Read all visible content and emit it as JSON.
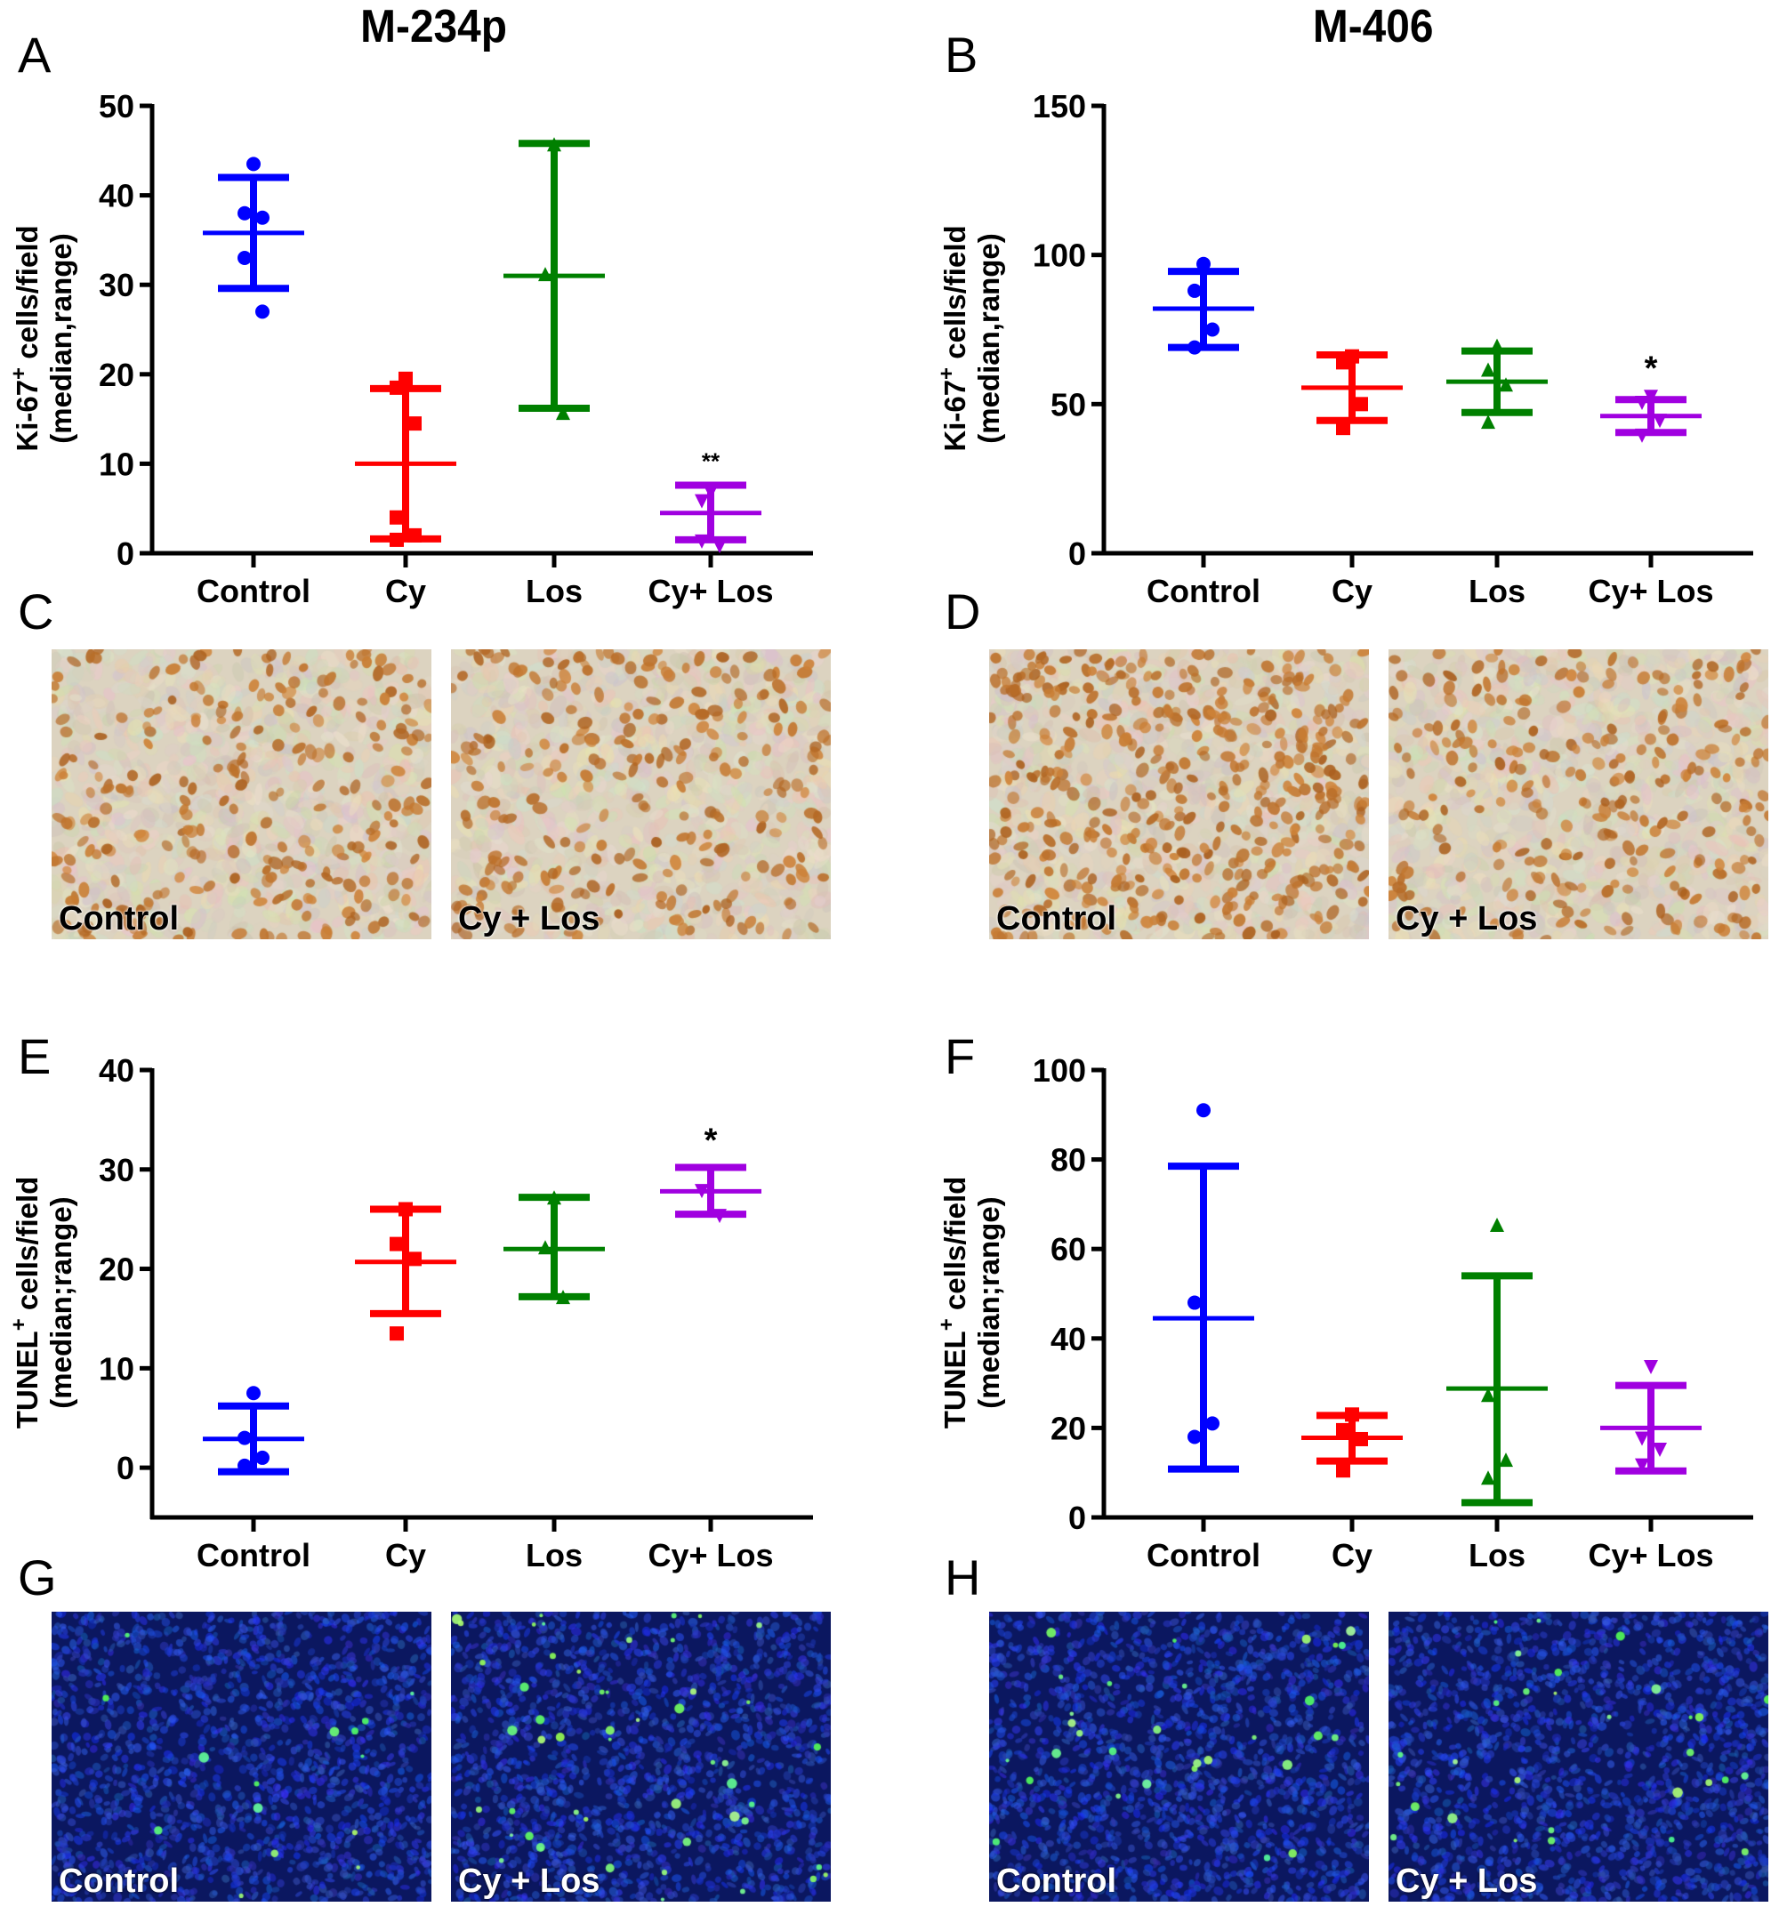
{
  "titles": {
    "left": "M-234p",
    "right": "M-406"
  },
  "panel_letters": [
    "A",
    "B",
    "C",
    "D",
    "E",
    "F",
    "G",
    "H"
  ],
  "colors": {
    "Control": "#0000ff",
    "Cy": "#ff0000",
    "Los": "#008000",
    "Cy+ Los": "#a000e0"
  },
  "markers": {
    "Control": "circle",
    "Cy": "square",
    "Los": "triangle-up",
    "Cy+ Los": "triangle-down"
  },
  "chart_data": [
    {
      "id": "A",
      "type": "scatter",
      "title": "M-234p",
      "ylabel": {
        "main": "Ki-67",
        "sup": "+",
        "rest": " cells/field",
        "line2": "(median,range)"
      },
      "ylim": [
        0,
        50
      ],
      "yticks": [
        0,
        10,
        20,
        30,
        40,
        50
      ],
      "categories": [
        "Control",
        "Cy",
        "Los",
        "Cy+ Los"
      ],
      "groups": [
        {
          "name": "Control",
          "points": [
            43.5,
            38,
            37.5,
            33,
            27
          ],
          "median": 35.8,
          "upper": 42,
          "lower": 29.6
        },
        {
          "name": "Cy",
          "points": [
            19.5,
            18.5,
            14.5,
            4,
            2,
            1.5
          ],
          "median": 10,
          "upper": 18.4,
          "lower": 1.6
        },
        {
          "name": "Los",
          "points": [
            45.5,
            31,
            15.5
          ],
          "median": 31,
          "upper": 45.8,
          "lower": 16.2
        },
        {
          "name": "Cy+ Los",
          "points": [
            7,
            6,
            1,
            1.5
          ],
          "median": 4.5,
          "upper": 7.6,
          "lower": 1.5
        }
      ],
      "annotations": [
        {
          "category": "Cy+ Los",
          "text": "**"
        }
      ]
    },
    {
      "id": "B",
      "type": "scatter",
      "title": "M-406",
      "ylabel": {
        "main": "Ki-67",
        "sup": "+",
        "rest": " cells/field",
        "line2": "(median,range)"
      },
      "ylim": [
        0,
        150
      ],
      "yticks": [
        0,
        50,
        100,
        150
      ],
      "categories": [
        "Control",
        "Cy",
        "Los",
        "Cy+ Los"
      ],
      "groups": [
        {
          "name": "Control",
          "points": [
            97,
            88,
            75,
            69
          ],
          "median": 82,
          "upper": 94.5,
          "lower": 69
        },
        {
          "name": "Cy",
          "points": [
            66,
            64,
            50,
            42
          ],
          "median": 55.5,
          "upper": 66.5,
          "lower": 44.5
        },
        {
          "name": "Los",
          "points": [
            69,
            61,
            56,
            43.5
          ],
          "median": 57.5,
          "upper": 67.8,
          "lower": 47.2
        },
        {
          "name": "Cy+ Los",
          "points": [
            53,
            51,
            45,
            40
          ],
          "median": 46,
          "upper": 51.5,
          "lower": 40.5
        }
      ],
      "annotations": [
        {
          "category": "Cy+ Los",
          "text": "*"
        }
      ]
    },
    {
      "id": "E",
      "type": "scatter",
      "ylabel": {
        "main": "TUNEL",
        "sup": "+",
        "rest": " cells/field",
        "line2": "(median;range)"
      },
      "ylim": [
        -5,
        40
      ],
      "yticks": [
        0,
        10,
        20,
        30,
        40
      ],
      "categories": [
        "Control",
        "Cy",
        "Los",
        "Cy+ Los"
      ],
      "groups": [
        {
          "name": "Control",
          "points": [
            7.5,
            3,
            1,
            0.2
          ],
          "median": 2.9,
          "upper": 6.2,
          "lower": -0.4
        },
        {
          "name": "Cy",
          "points": [
            26,
            22.5,
            21,
            13.5
          ],
          "median": 20.7,
          "upper": 26,
          "lower": 15.5
        },
        {
          "name": "Los",
          "points": [
            27,
            22,
            17
          ],
          "median": 22,
          "upper": 27.2,
          "lower": 17.2
        },
        {
          "name": "Cy+ Los",
          "points": [
            30,
            28,
            25.5
          ],
          "median": 27.8,
          "upper": 30.2,
          "lower": 25.5
        }
      ],
      "annotations": [
        {
          "category": "Cy+ Los",
          "text": "*"
        }
      ]
    },
    {
      "id": "F",
      "type": "scatter",
      "ylabel": {
        "main": "TUNEL",
        "sup": "+",
        "rest": " cells/field",
        "line2": "(median;range)"
      },
      "ylim": [
        0,
        100
      ],
      "yticks": [
        0,
        20,
        40,
        60,
        80,
        100
      ],
      "categories": [
        "Control",
        "Cy",
        "Los",
        "Cy+ Los"
      ],
      "groups": [
        {
          "name": "Control",
          "points": [
            91,
            48,
            21,
            18
          ],
          "median": 44.5,
          "upper": 78.5,
          "lower": 10.8
        },
        {
          "name": "Cy",
          "points": [
            23,
            19.5,
            17.5,
            10.5
          ],
          "median": 17.8,
          "upper": 22.8,
          "lower": 12.6
        },
        {
          "name": "Los",
          "points": [
            65,
            27,
            12.5,
            8.5
          ],
          "median": 28.8,
          "upper": 54,
          "lower": 3.3
        },
        {
          "name": "Cy+ Los",
          "points": [
            34,
            18,
            15.5,
            12
          ],
          "median": 20,
          "upper": 29.5,
          "lower": 10.4
        }
      ],
      "annotations": []
    }
  ],
  "micrographs": [
    {
      "panel": "C",
      "label": "Control",
      "stain": "ihc",
      "density": "medium"
    },
    {
      "panel": "C",
      "label": "Cy + Los",
      "stain": "ihc",
      "density": "medium"
    },
    {
      "panel": "D",
      "label": "Control",
      "stain": "ihc",
      "density": "high"
    },
    {
      "panel": "D",
      "label": "Cy + Los",
      "stain": "ihc",
      "density": "medium"
    },
    {
      "panel": "G",
      "label": "Control",
      "stain": "tunel",
      "density": "low"
    },
    {
      "panel": "G",
      "label": "Cy + Los",
      "stain": "tunel",
      "density": "high"
    },
    {
      "panel": "H",
      "label": "Control",
      "stain": "tunel",
      "density": "medium"
    },
    {
      "panel": "H",
      "label": "Cy + Los",
      "stain": "tunel",
      "density": "medium"
    }
  ]
}
